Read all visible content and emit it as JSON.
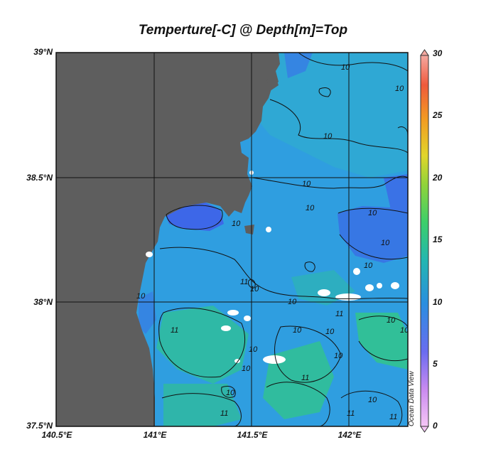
{
  "title": "Temperture[-C] @ Depth[m]=Top",
  "axes": {
    "y_ticks": [
      "39°N",
      "38.5°N",
      "38°N",
      "37.5°N"
    ],
    "x_ticks": [
      "140.5°E",
      "141°E",
      "141.5°E",
      "142°E"
    ]
  },
  "colorbar": {
    "ticks": [
      "30",
      "25",
      "20",
      "15",
      "10",
      "5",
      "0"
    ],
    "range": [
      0,
      30
    ]
  },
  "contour_labels": [
    "10",
    "11"
  ],
  "watermark": "Ocean Data View",
  "colors": {
    "land": "#5e5e5e",
    "sea_base": "#2f9ee0",
    "sea_warm": "#2fc09a",
    "sea_cold": "#3a72e6",
    "contour": "#111111"
  }
}
